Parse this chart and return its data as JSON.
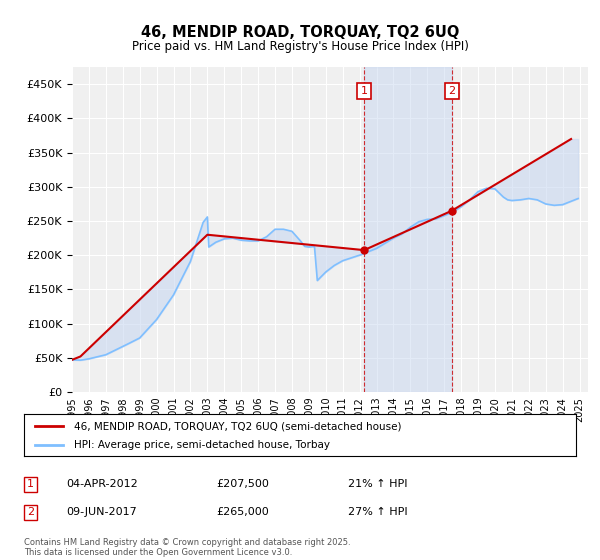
{
  "title": "46, MENDIP ROAD, TORQUAY, TQ2 6UQ",
  "subtitle": "Price paid vs. HM Land Registry's House Price Index (HPI)",
  "ytick_values": [
    0,
    50000,
    100000,
    150000,
    200000,
    250000,
    300000,
    350000,
    400000,
    450000
  ],
  "ylim": [
    0,
    475000
  ],
  "xlim_start": 1995.0,
  "xlim_end": 2025.5,
  "background_color": "#ffffff",
  "plot_bg_color": "#f0f0f0",
  "grid_color": "#ffffff",
  "legend_label_property": "46, MENDIP ROAD, TORQUAY, TQ2 6UQ (semi-detached house)",
  "legend_label_hpi": "HPI: Average price, semi-detached house, Torbay",
  "property_line_color": "#cc0000",
  "hpi_line_color": "#7fbfff",
  "transaction1_label": "04-APR-2012",
  "transaction1_price_str": "£207,500",
  "transaction1_pct": "21% ↑ HPI",
  "transaction2_label": "09-JUN-2017",
  "transaction2_price_str": "£265,000",
  "transaction2_pct": "27% ↑ HPI",
  "shade_color": "#c8d8f0",
  "footer_text": "Contains HM Land Registry data © Crown copyright and database right 2025.\nThis data is licensed under the Open Government Licence v3.0.",
  "marker1_x": 2012.27,
  "marker1_y": 207500,
  "marker2_x": 2017.44,
  "marker2_y": 265000,
  "property_line_x": [
    1995.0,
    1995.5,
    2003.0,
    2012.27,
    2017.44,
    2024.5
  ],
  "property_line_y": [
    47000,
    52000,
    230000,
    207500,
    265000,
    370000
  ]
}
